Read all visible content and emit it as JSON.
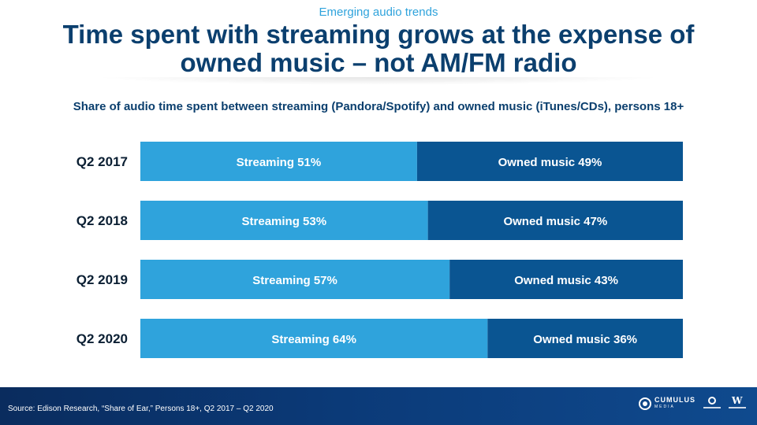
{
  "header": {
    "kicker": "Emerging audio trends",
    "title_line1": "Time spent with streaming grows at the expense of",
    "title_line2": "owned music – not AM/FM radio",
    "subtitle": "Share of audio time spent between streaming (Pandora/Spotify) and owned music (iTunes/CDs), persons 18+"
  },
  "chart_data": {
    "type": "bar",
    "orientation": "horizontal",
    "stacked": true,
    "percent_stacked": true,
    "categories": [
      "Q2 2017",
      "Q2 2018",
      "Q2 2019",
      "Q2 2020"
    ],
    "series": [
      {
        "name": "Streaming",
        "values": [
          51,
          53,
          57,
          64
        ],
        "color": "#2fa3dc",
        "labels": [
          "Streaming 51%",
          "Streaming 53%",
          "Streaming 57%",
          "Streaming 64%"
        ]
      },
      {
        "name": "Owned music",
        "values": [
          49,
          47,
          43,
          36
        ],
        "color": "#0a5592",
        "labels": [
          "Owned music 49%",
          "Owned music 47%",
          "Owned music 43%",
          "Owned music 36%"
        ]
      }
    ],
    "xlim": [
      0,
      100
    ],
    "grid": false,
    "legend": "none"
  },
  "footer": {
    "source": "Source: Edison Research, “Share of Ear,” Persons 18+, Q2 2017 – Q2 2020",
    "logos": [
      "cumulus-media-logo",
      "cumulus-radio-logo",
      "westwood-one-logo"
    ],
    "cumulus_word": "CUMULUS",
    "cumulus_sub": "MEDIA"
  }
}
